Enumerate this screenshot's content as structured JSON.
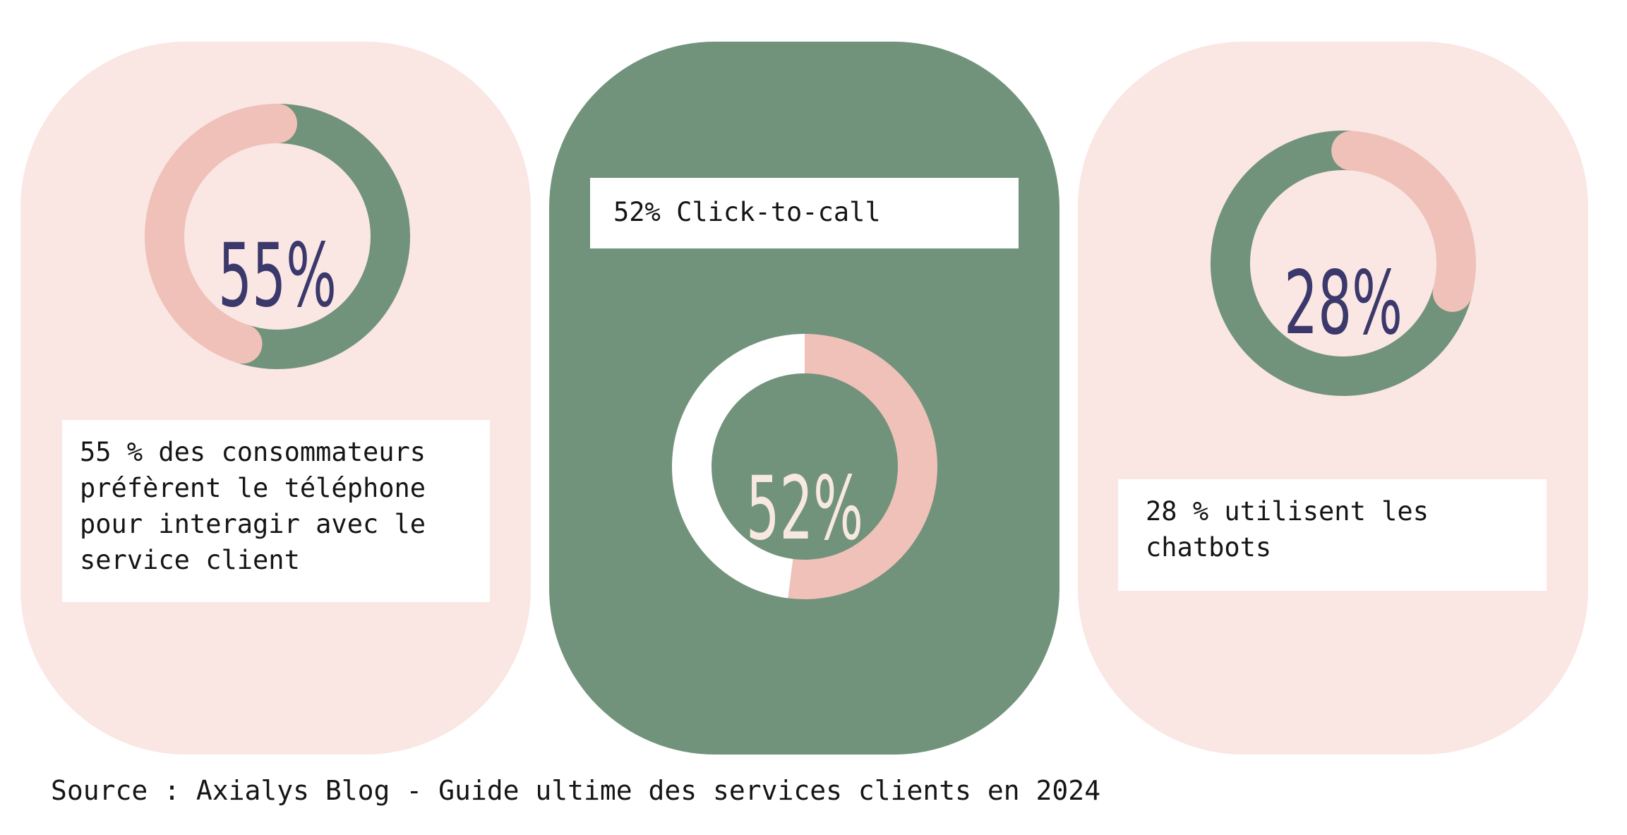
{
  "colors": {
    "pink_bg": "#fae6e3",
    "green": "#71937b",
    "salmon": "#efc1b8",
    "navy": "#3b386b",
    "cream": "#f7e8e0",
    "white": "#ffffff"
  },
  "cards": [
    {
      "percent_label": "55%",
      "caption_lines": [
        "55 % des consommateurs",
        "préfèrent le téléphone",
        "pour interagir avec le",
        "service client"
      ]
    },
    {
      "header": "52% Click-to-call",
      "percent_label": "52%"
    },
    {
      "percent_label": "28%",
      "caption_lines": [
        "28 % utilisent les",
        "chatbots"
      ]
    }
  ],
  "source": "Source : Axialys Blog - Guide ultime des services clients en 2024",
  "chart_data": [
    {
      "type": "pie",
      "variant": "donut",
      "values": [
        55,
        45
      ],
      "labels": [
        "55%",
        ""
      ],
      "colors": [
        "#71937b",
        "#efc1b8"
      ]
    },
    {
      "type": "pie",
      "variant": "donut",
      "values": [
        52,
        48
      ],
      "labels": [
        "52%",
        ""
      ],
      "colors": [
        "#efc1b8",
        "#ffffff"
      ]
    },
    {
      "type": "pie",
      "variant": "donut",
      "values": [
        28,
        72
      ],
      "labels": [
        "28%",
        ""
      ],
      "colors": [
        "#efc1b8",
        "#71937b"
      ]
    }
  ]
}
